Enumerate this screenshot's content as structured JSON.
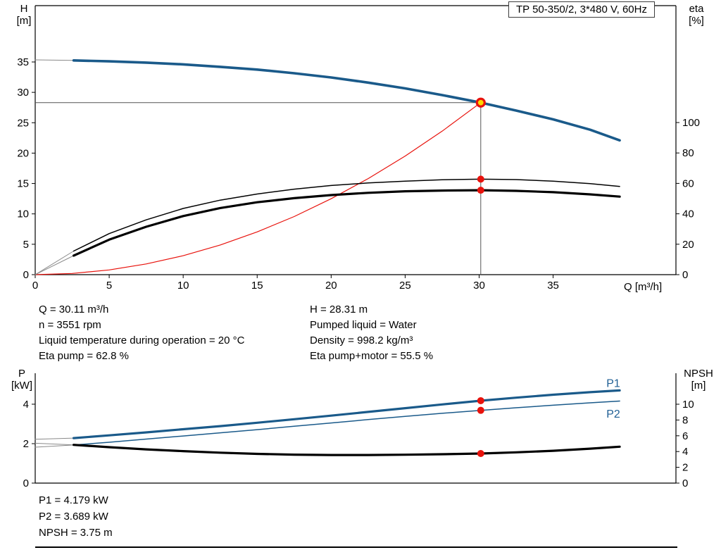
{
  "page": {
    "title_box": "TP 50-350/2, 3*480 V, 60Hz"
  },
  "axis_titles": {
    "top_left_1": "H",
    "top_left_2": "[m]",
    "top_right_1": "eta",
    "top_right_2": "[%]",
    "x_label": "Q [m³/h]",
    "bottom_left_1": "P",
    "bottom_left_2": "[kW]",
    "bottom_right_1": "NPSH",
    "bottom_right_2": "[m]"
  },
  "info": {
    "q": "Q = 30.11 m³/h",
    "n": "n = 3551 rpm",
    "liquid_temp": "Liquid temperature during operation = 20 °C",
    "eta_pump": "Eta pump = 62.8 %",
    "h": "H = 28.31 m",
    "pumped_liquid": "Pumped liquid = Water",
    "density": "Density = 998.2 kg/m³",
    "eta_pump_motor": "Eta pump+motor = 55.5 %"
  },
  "results": {
    "p1": "P1 = 4.179 kW",
    "p2": "P2 = 3.689 kW",
    "npsh": "NPSH = 3.75 m"
  },
  "colors": {
    "curve_blue": "#1a5a8a",
    "curve_black": "#000000",
    "curve_red": "#e8120c",
    "lead_gray": "#8a8a8a",
    "crosshair": "#555555",
    "marker_red": "#e8120c",
    "marker_yellow": "#ffd800",
    "label_blue": "#1f5f94"
  },
  "chart_data": [
    {
      "type": "line",
      "title": "TP 50-350/2, 3*480 V, 60Hz",
      "x": {
        "label": "Q [m³/h]",
        "min": 0,
        "max": 43.3,
        "ticks": [
          0,
          5,
          10,
          15,
          20,
          25,
          30,
          35
        ]
      },
      "y_left": {
        "label": "H [m]",
        "min": 0,
        "max": 44.27,
        "ticks": [
          0,
          5,
          10,
          15,
          20,
          25,
          30,
          35
        ]
      },
      "y_right": {
        "label": "eta [%]",
        "min": 0,
        "max": 176.85,
        "ticks": [
          0,
          20,
          40,
          60,
          80,
          100
        ]
      },
      "crosshair": {
        "x": 30.11,
        "y": 28.31
      },
      "series": [
        {
          "name": "head-curve-lead",
          "axis": "left",
          "color": "#8a8a8a",
          "width": 1,
          "points": [
            [
              0,
              35.35
            ],
            [
              2.6,
              35.25
            ]
          ]
        },
        {
          "name": "head-curve",
          "axis": "left",
          "color": "#1a5a8a",
          "width": 3.6,
          "points": [
            [
              2.6,
              35.25
            ],
            [
              5,
              35.1
            ],
            [
              7.5,
              34.9
            ],
            [
              10,
              34.6
            ],
            [
              12.5,
              34.2
            ],
            [
              15,
              33.75
            ],
            [
              17.5,
              33.15
            ],
            [
              20,
              32.45
            ],
            [
              22.5,
              31.6
            ],
            [
              25,
              30.65
            ],
            [
              27.5,
              29.55
            ],
            [
              30.11,
              28.31
            ],
            [
              32.5,
              27.0
            ],
            [
              35,
              25.55
            ],
            [
              37.5,
              23.85
            ],
            [
              39.5,
              22.1
            ]
          ]
        },
        {
          "name": "system-curve",
          "axis": "left",
          "color": "#e8120c",
          "width": 1.2,
          "points": [
            [
              0,
              0
            ],
            [
              2.5,
              0.2
            ],
            [
              5,
              0.78
            ],
            [
              7.5,
              1.76
            ],
            [
              10,
              3.12
            ],
            [
              12.5,
              4.88
            ],
            [
              15,
              7.03
            ],
            [
              17.5,
              9.56
            ],
            [
              20,
              12.49
            ],
            [
              22.5,
              15.81
            ],
            [
              25,
              19.52
            ],
            [
              27.5,
              23.61
            ],
            [
              30.11,
              28.31
            ]
          ]
        },
        {
          "name": "eta-pump-curve-lead",
          "axis": "right",
          "color": "#8a8a8a",
          "width": 1,
          "points": [
            [
              0,
              0
            ],
            [
              2.6,
              15.5
            ]
          ]
        },
        {
          "name": "eta-pump-curve",
          "axis": "right",
          "color": "#000000",
          "width": 1.5,
          "points": [
            [
              2.6,
              15.5
            ],
            [
              5,
              27
            ],
            [
              7.5,
              36
            ],
            [
              10,
              43.5
            ],
            [
              12.5,
              49
            ],
            [
              15,
              53
            ],
            [
              17.5,
              56.2
            ],
            [
              20,
              58.6
            ],
            [
              22.5,
              60.3
            ],
            [
              25,
              61.5
            ],
            [
              27.5,
              62.4
            ],
            [
              30.11,
              62.8
            ],
            [
              32.5,
              62.5
            ],
            [
              35,
              61.5
            ],
            [
              37.5,
              59.8
            ],
            [
              39.5,
              58
            ]
          ]
        },
        {
          "name": "eta-pump-motor-curve-lead",
          "axis": "right",
          "color": "#8a8a8a",
          "width": 1,
          "points": [
            [
              0,
              0
            ],
            [
              2.6,
              12.5
            ]
          ]
        },
        {
          "name": "eta-pump-motor-curve",
          "axis": "right",
          "color": "#000000",
          "width": 3.2,
          "points": [
            [
              2.6,
              12.5
            ],
            [
              5,
              23
            ],
            [
              7.5,
              31.5
            ],
            [
              10,
              38.5
            ],
            [
              12.5,
              43.8
            ],
            [
              15,
              47.6
            ],
            [
              17.5,
              50.3
            ],
            [
              20,
              52.3
            ],
            [
              22.5,
              53.8
            ],
            [
              25,
              54.8
            ],
            [
              27.5,
              55.3
            ],
            [
              30.11,
              55.5
            ],
            [
              32.5,
              55.1
            ],
            [
              35,
              54.2
            ],
            [
              37.5,
              52.8
            ],
            [
              39.5,
              51.3
            ]
          ]
        }
      ],
      "markers": [
        {
          "name": "duty-point",
          "x": 30.11,
          "y": 28.31,
          "axis": "left",
          "style": "duty"
        },
        {
          "name": "eta-pump-duty-dot",
          "x": 30.11,
          "y": 62.8,
          "axis": "right",
          "style": "dot"
        },
        {
          "name": "eta-pump-motor-duty-dot",
          "x": 30.11,
          "y": 55.5,
          "axis": "right",
          "style": "dot"
        }
      ],
      "curve_labels": []
    },
    {
      "type": "line",
      "title": "",
      "x": {
        "label": "Q [m³/h]",
        "min": 0,
        "max": 43.3,
        "ticks": []
      },
      "y_left": {
        "label": "P [kW]",
        "min": 0,
        "max": 5.57,
        "ticks": [
          0,
          2,
          4
        ]
      },
      "y_right": {
        "label": "NPSH [m]",
        "min": 0,
        "max": 13.93,
        "ticks": [
          0,
          2,
          4,
          6,
          8,
          10
        ]
      },
      "crosshair": null,
      "series": [
        {
          "name": "p1-curve-lead",
          "axis": "left",
          "color": "#8a8a8a",
          "width": 1,
          "points": [
            [
              0,
              2.22
            ],
            [
              2.6,
              2.28
            ]
          ]
        },
        {
          "name": "p1-curve",
          "axis": "left",
          "color": "#1a5a8a",
          "width": 3.2,
          "points": [
            [
              2.6,
              2.28
            ],
            [
              5,
              2.42
            ],
            [
              7.5,
              2.57
            ],
            [
              10,
              2.73
            ],
            [
              12.5,
              2.89
            ],
            [
              15,
              3.06
            ],
            [
              17.5,
              3.24
            ],
            [
              20,
              3.42
            ],
            [
              22.5,
              3.61
            ],
            [
              25,
              3.8
            ],
            [
              27.5,
              3.99
            ],
            [
              30.11,
              4.179
            ],
            [
              32.5,
              4.33
            ],
            [
              35,
              4.48
            ],
            [
              37.5,
              4.61
            ],
            [
              39.5,
              4.7
            ]
          ]
        },
        {
          "name": "p2-curve-lead",
          "axis": "left",
          "color": "#8a8a8a",
          "width": 1,
          "points": [
            [
              0,
              1.82
            ],
            [
              2.6,
              1.93
            ]
          ]
        },
        {
          "name": "p2-curve",
          "axis": "left",
          "color": "#1a5a8a",
          "width": 1.5,
          "points": [
            [
              2.6,
              1.93
            ],
            [
              5,
              2.07
            ],
            [
              7.5,
              2.23
            ],
            [
              10,
              2.39
            ],
            [
              12.5,
              2.55
            ],
            [
              15,
              2.71
            ],
            [
              17.5,
              2.88
            ],
            [
              20,
              3.05
            ],
            [
              22.5,
              3.22
            ],
            [
              25,
              3.38
            ],
            [
              27.5,
              3.54
            ],
            [
              30.11,
              3.689
            ],
            [
              32.5,
              3.82
            ],
            [
              35,
              3.95
            ],
            [
              37.5,
              4.07
            ],
            [
              39.5,
              4.16
            ]
          ]
        },
        {
          "name": "npsh-curve-lead",
          "axis": "right",
          "color": "#8a8a8a",
          "width": 1,
          "points": [
            [
              0,
              5.05
            ],
            [
              2.6,
              4.85
            ]
          ]
        },
        {
          "name": "npsh-curve",
          "axis": "right",
          "color": "#000000",
          "width": 3.2,
          "points": [
            [
              2.6,
              4.85
            ],
            [
              5,
              4.55
            ],
            [
              7.5,
              4.28
            ],
            [
              10,
              4.05
            ],
            [
              12.5,
              3.86
            ],
            [
              15,
              3.71
            ],
            [
              17.5,
              3.61
            ],
            [
              20,
              3.56
            ],
            [
              22.5,
              3.56
            ],
            [
              25,
              3.6
            ],
            [
              27.5,
              3.66
            ],
            [
              30.11,
              3.75
            ],
            [
              32.5,
              3.9
            ],
            [
              35,
              4.1
            ],
            [
              37.5,
              4.37
            ],
            [
              39.5,
              4.62
            ]
          ]
        }
      ],
      "markers": [
        {
          "name": "p1-duty-dot",
          "x": 30.11,
          "y": 4.179,
          "axis": "left",
          "style": "dot"
        },
        {
          "name": "p2-duty-dot",
          "x": 30.11,
          "y": 3.689,
          "axis": "left",
          "style": "dot"
        },
        {
          "name": "npsh-duty-dot",
          "x": 30.11,
          "y": 3.75,
          "axis": "right",
          "style": "dot"
        }
      ],
      "curve_labels": [
        {
          "text": "P1",
          "x": 38.6,
          "y": 5.05,
          "axis": "left"
        },
        {
          "text": "P2",
          "x": 38.6,
          "y": 3.5,
          "axis": "left"
        }
      ]
    }
  ]
}
